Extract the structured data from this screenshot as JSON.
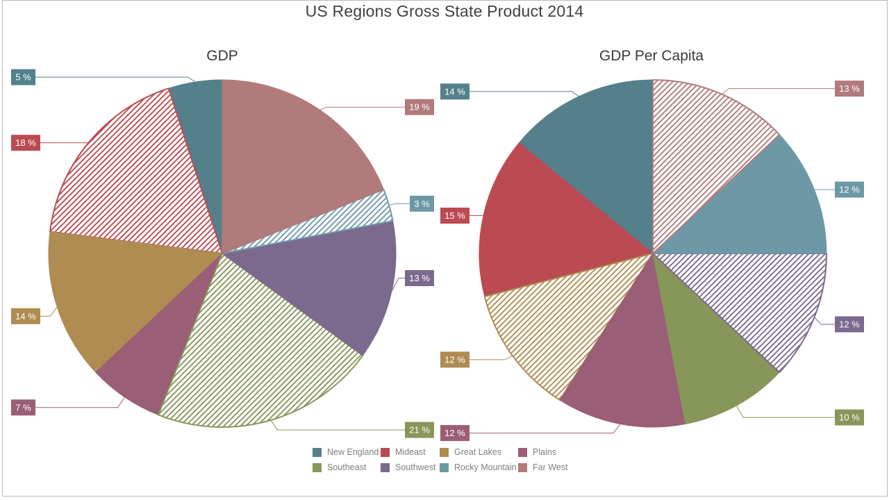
{
  "title": "US Regions Gross State Product 2014",
  "chart_data": {
    "type": "pie",
    "title": "US Regions Gross State Product 2014",
    "layout": "two pies side by side, percent callout labels outside, legend bottom center",
    "legend_position": "bottom",
    "label_suffix": " %",
    "categories": [
      "New England",
      "Mideast",
      "Great Lakes",
      "Plains",
      "Southeast",
      "Southwest",
      "Rocky Mountain",
      "Far West"
    ],
    "colors": [
      "#54808c",
      "#bc4a52",
      "#af8c51",
      "#9a5e76",
      "#879659",
      "#7c698e",
      "#6d99a7",
      "#b17a7b"
    ],
    "pies": [
      {
        "name": "GDP",
        "values": [
          5,
          18,
          14,
          7,
          21,
          13,
          3,
          19
        ],
        "labels": [
          "5 %",
          "18 %",
          "14 %",
          "7 %",
          "21 %",
          "13 %",
          "3 %",
          "19 %"
        ],
        "hatched": [
          false,
          true,
          false,
          false,
          true,
          false,
          true,
          false
        ]
      },
      {
        "name": "GDP Per Capita",
        "values": [
          14,
          15,
          12,
          12,
          10,
          12,
          12,
          13
        ],
        "labels": [
          "14 %",
          "15 %",
          "12 %",
          "12 %",
          "10 %",
          "12 %",
          "12 %",
          "13 %"
        ],
        "hatched": [
          false,
          false,
          true,
          false,
          false,
          true,
          false,
          true
        ]
      }
    ]
  },
  "legend": {
    "items": [
      "New England",
      "Mideast",
      "Great Lakes",
      "Plains",
      "Southeast",
      "Southwest",
      "Rocky Mountain",
      "Far West"
    ]
  }
}
